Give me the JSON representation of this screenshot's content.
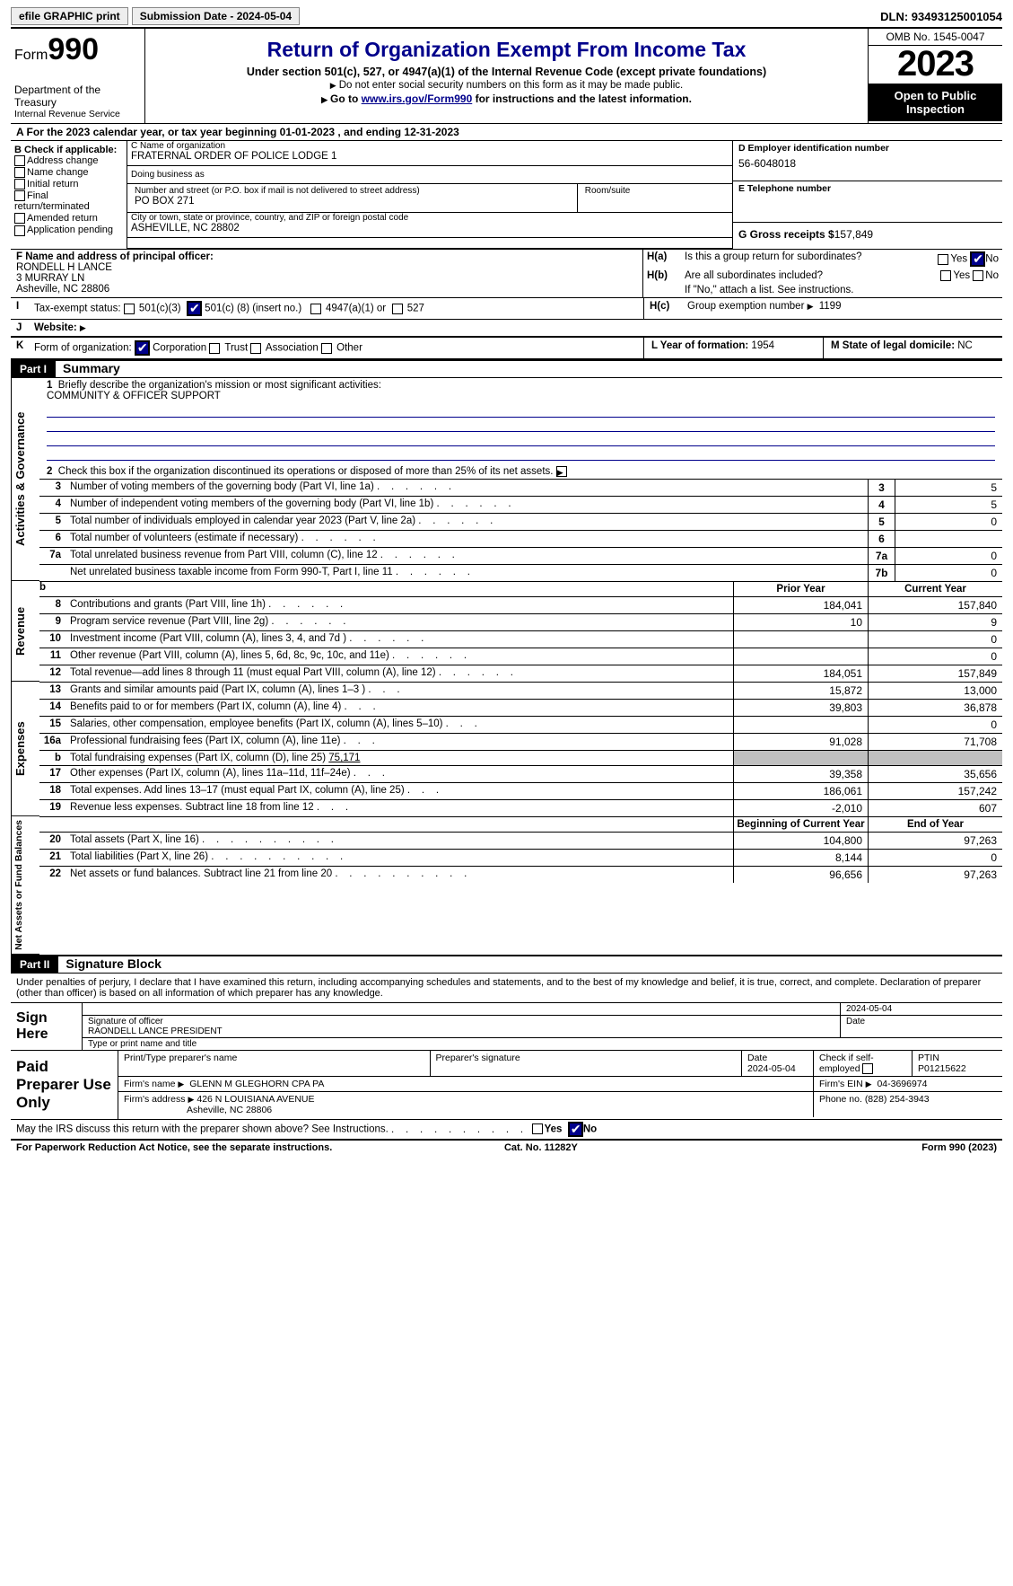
{
  "colors": {
    "navy": "#00008B",
    "black": "#000000",
    "gray": "#bfbfbf",
    "white": "#ffffff"
  },
  "top": {
    "efile_btn": "efile GRAPHIC print",
    "submission": "Submission Date - 2024-05-04",
    "dln": "DLN: 93493125001054"
  },
  "header": {
    "form_word": "Form",
    "form_num": "990",
    "title": "Return of Organization Exempt From Income Tax",
    "subtitle": "Under section 501(c), 527, or 4947(a)(1) of the Internal Revenue Code (except private foundations)",
    "note1": "Do not enter social security numbers on this form as it may be made public.",
    "goto_prefix": "Go to ",
    "goto_link": "www.irs.gov/Form990",
    "goto_suffix": " for instructions and the latest information.",
    "dept": "Department of the Treasury",
    "irs_line": "Internal Revenue Service",
    "omb": "OMB No. 1545-0047",
    "year": "2023",
    "open": "Open to Public Inspection"
  },
  "period": {
    "label_a": "A  For the 2023 calendar year, or tax year beginning ",
    "begin": "01-01-2023",
    "mid": "    , and ending ",
    "end": "12-31-2023"
  },
  "boxB": {
    "header": "B Check if applicable:",
    "items": [
      "Address change",
      "Name change",
      "Initial return",
      "Final return/terminated",
      "Amended return",
      "Application pending"
    ]
  },
  "boxC": {
    "name_label": "C Name of organization",
    "name": "FRATERNAL ORDER OF POLICE LODGE 1",
    "dba_label": "Doing business as",
    "dba": "",
    "street_label": "Number and street (or P.O. box if mail is not delivered to street address)",
    "room_label": "Room/suite",
    "street": "PO BOX 271",
    "city_label": "City or town, state or province, country, and ZIP or foreign postal code",
    "city": "ASHEVILLE, NC  28802"
  },
  "boxD": {
    "label": "D Employer identification number",
    "value": "56-6048018"
  },
  "boxE": {
    "label": "E Telephone number",
    "value": ""
  },
  "boxG": {
    "label": "G Gross receipts $",
    "value": "157,849"
  },
  "boxF": {
    "label": "F  Name and address of principal officer:",
    "name": "RONDELL H LANCE",
    "addr1": "3 MURRAY LN",
    "addr2": "Asheville, NC  28806"
  },
  "boxH": {
    "a_label": "H(a)",
    "a_text": "Is this a group return for subordinates?",
    "b_label": "H(b)",
    "b_text": "Are all subordinates included?",
    "b_note": "If \"No,\" attach a list. See instructions.",
    "c_label": "H(c)",
    "c_text": "Group exemption number ",
    "c_val": "1199",
    "yes": "Yes",
    "no": "No"
  },
  "boxI": {
    "label": "Tax-exempt status:",
    "opt1": "501(c)(3)",
    "opt2_a": "501(c) (",
    "opt2_num": "8",
    "opt2_b": ") (insert no.)",
    "opt3": "4947(a)(1) or",
    "opt4": "527"
  },
  "boxJ": {
    "label": "Website:",
    "value": ""
  },
  "boxK": {
    "label": "Form of organization:",
    "opts": [
      "Corporation",
      "Trust",
      "Association",
      "Other"
    ]
  },
  "boxL": {
    "label": "L Year of formation:",
    "value": "1954"
  },
  "boxM": {
    "label": "M State of legal domicile:",
    "value": "NC"
  },
  "partI": {
    "number": "Part I",
    "title": "Summary",
    "line1_label": "Briefly describe the organization's mission or most significant activities:",
    "line1_val": "COMMUNITY & OFFICER SUPPORT",
    "line2": "Check this box         if the organization discontinued its operations or disposed of more than 25% of its net assets.",
    "governance_label": "Activities & Governance",
    "revenue_label": "Revenue",
    "expenses_label": "Expenses",
    "netassets_label": "Net Assets or Fund Balances",
    "rows_gov": [
      {
        "n": "3",
        "d": "Number of voting members of the governing body (Part VI, line 1a)",
        "box": "3",
        "v": "5"
      },
      {
        "n": "4",
        "d": "Number of independent voting members of the governing body (Part VI, line 1b)",
        "box": "4",
        "v": "5"
      },
      {
        "n": "5",
        "d": "Total number of individuals employed in calendar year 2023 (Part V, line 2a)",
        "box": "5",
        "v": "0"
      },
      {
        "n": "6",
        "d": "Total number of volunteers (estimate if necessary)",
        "box": "6",
        "v": ""
      },
      {
        "n": "7a",
        "d": "Total unrelated business revenue from Part VIII, column (C), line 12",
        "box": "7a",
        "v": "0"
      },
      {
        "n": "",
        "d": "Net unrelated business taxable income from Form 990-T, Part I, line 11",
        "box": "7b",
        "v": "0"
      }
    ],
    "col_prior": "Prior Year",
    "col_current": "Current Year",
    "col_boy": "Beginning of Current Year",
    "col_eoy": "End of Year",
    "rows_rev": [
      {
        "n": "8",
        "d": "Contributions and grants (Part VIII, line 1h)",
        "p": "184,041",
        "c": "157,840"
      },
      {
        "n": "9",
        "d": "Program service revenue (Part VIII, line 2g)",
        "p": "10",
        "c": "9"
      },
      {
        "n": "10",
        "d": "Investment income (Part VIII, column (A), lines 3, 4, and 7d )",
        "p": "",
        "c": "0"
      },
      {
        "n": "11",
        "d": "Other revenue (Part VIII, column (A), lines 5, 6d, 8c, 9c, 10c, and 11e)",
        "p": "",
        "c": "0"
      },
      {
        "n": "12",
        "d": "Total revenue—add lines 8 through 11 (must equal Part VIII, column (A), line 12)",
        "p": "184,051",
        "c": "157,849"
      }
    ],
    "rows_exp": [
      {
        "n": "13",
        "d": "Grants and similar amounts paid (Part IX, column (A), lines 1–3 )",
        "p": "15,872",
        "c": "13,000"
      },
      {
        "n": "14",
        "d": "Benefits paid to or for members (Part IX, column (A), line 4)",
        "p": "39,803",
        "c": "36,878"
      },
      {
        "n": "15",
        "d": "Salaries, other compensation, employee benefits (Part IX, column (A), lines 5–10)",
        "p": "",
        "c": "0"
      },
      {
        "n": "16a",
        "d": "Professional fundraising fees (Part IX, column (A), line 11e)",
        "p": "91,028",
        "c": "71,708"
      }
    ],
    "row16b_n": "b",
    "row16b_d": "Total fundraising expenses (Part IX, column (D), line 25) ",
    "row16b_v": "75,171",
    "rows_exp2": [
      {
        "n": "17",
        "d": "Other expenses (Part IX, column (A), lines 11a–11d, 11f–24e)",
        "p": "39,358",
        "c": "35,656"
      },
      {
        "n": "18",
        "d": "Total expenses. Add lines 13–17 (must equal Part IX, column (A), line 25)",
        "p": "186,061",
        "c": "157,242"
      },
      {
        "n": "19",
        "d": "Revenue less expenses. Subtract line 18 from line 12",
        "p": "-2,010",
        "c": "607"
      }
    ],
    "rows_na": [
      {
        "n": "20",
        "d": "Total assets (Part X, line 16)",
        "p": "104,800",
        "c": "97,263"
      },
      {
        "n": "21",
        "d": "Total liabilities (Part X, line 26)",
        "p": "8,144",
        "c": "0"
      },
      {
        "n": "22",
        "d": "Net assets or fund balances. Subtract line 21 from line 20",
        "p": "96,656",
        "c": "97,263"
      }
    ]
  },
  "partII": {
    "number": "Part II",
    "title": "Signature Block",
    "penalties": "Under penalties of perjury, I declare that I have examined this return, including accompanying schedules and statements, and to the best of my knowledge and belief, it is true, correct, and complete. Declaration of preparer (other than officer) is based on all information of which preparer has any knowledge."
  },
  "sign": {
    "label": "Sign Here",
    "sig_label": "Signature of officer",
    "date_label": "Date",
    "date_val": "2024-05-04",
    "name_label": "Type or print name and title",
    "name_val": "RAONDELL LANCE  PRESIDENT"
  },
  "preparer": {
    "label": "Paid Preparer Use Only",
    "print_label": "Print/Type preparer's name",
    "sig_label": "Preparer's signature",
    "date_label": "Date",
    "date_val": "2024-05-04",
    "check_label": "Check         if self-employed",
    "ptin_label": "PTIN",
    "ptin_val": "P01215622",
    "firm_name_label": "Firm's name",
    "firm_name": "GLENN M GLEGHORN CPA PA",
    "firm_ein_label": "Firm's EIN",
    "firm_ein": "04-3696974",
    "firm_addr_label": "Firm's address",
    "firm_addr1": "426 N LOUISIANA AVENUE",
    "firm_addr2": "Asheville, NC  28806",
    "phone_label": "Phone no.",
    "phone": "(828) 254-3943"
  },
  "discuss": {
    "text": "May the IRS discuss this return with the preparer shown above? See Instructions.",
    "yes": "Yes",
    "no": "No"
  },
  "footer": {
    "left": "For Paperwork Reduction Act Notice, see the separate instructions.",
    "mid": "Cat. No. 11282Y",
    "right_a": "Form ",
    "right_b": "990",
    "right_c": " (2023)"
  }
}
